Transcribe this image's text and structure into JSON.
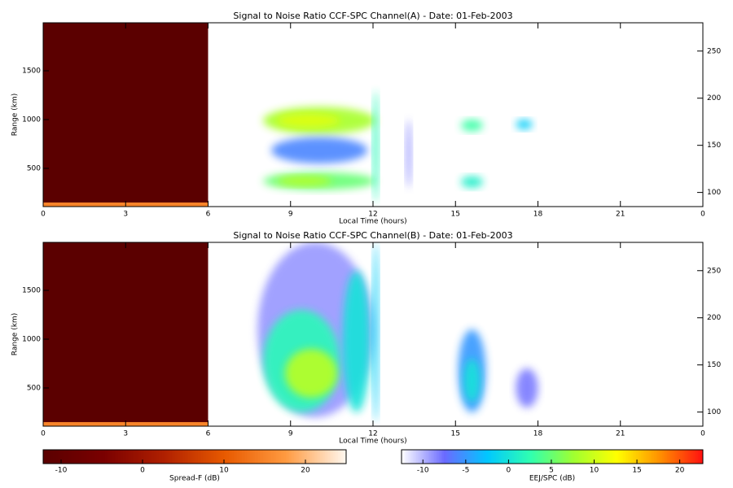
{
  "panels": [
    {
      "title": "Signal to Noise Ratio CCF-SPC Channel(A) - Date: 01-Feb-2003",
      "xlabel": "Local Time (hours)",
      "ylabel": "Range (km)",
      "xlim": [
        0,
        24
      ],
      "xticks": [
        0,
        3,
        6,
        9,
        12,
        15,
        18,
        21,
        {
          "value": 24,
          "label": "0"
        }
      ],
      "ylim": [
        108,
        1992
      ],
      "yticks": [
        500,
        1000,
        1500
      ],
      "y2lim": [
        85,
        280
      ],
      "y2ticks": [
        100,
        150,
        200,
        250
      ],
      "patches": [
        {
          "x": [
            0,
            6
          ],
          "y": [
            108,
            1992
          ],
          "value": -12,
          "colorbar": 0
        },
        {
          "x": [
            0,
            6
          ],
          "y": [
            108,
            150
          ],
          "value": 15,
          "colorbar": 0
        },
        {
          "x": [
            8,
            12.1
          ],
          "y": [
            850,
            1130
          ],
          "value": 8,
          "colorbar": 1
        },
        {
          "x": [
            8.5,
            10.8
          ],
          "y": [
            920,
            1060
          ],
          "value": 11,
          "colorbar": 1
        },
        {
          "x": [
            8,
            12.1
          ],
          "y": [
            280,
            460
          ],
          "value": 5,
          "colorbar": 1
        },
        {
          "x": [
            8.5,
            10.5
          ],
          "y": [
            320,
            420
          ],
          "value": 9,
          "colorbar": 1
        },
        {
          "x": [
            8.3,
            11.8
          ],
          "y": [
            550,
            820
          ],
          "value": -6,
          "colorbar": 1
        },
        {
          "x": [
            12,
            12.2
          ],
          "y": [
            150,
            1300
          ],
          "value": 2,
          "colorbar": 1
        },
        {
          "x": [
            15.2,
            16
          ],
          "y": [
            880,
            1000
          ],
          "value": 3,
          "colorbar": 1
        },
        {
          "x": [
            15.2,
            16
          ],
          "y": [
            300,
            420
          ],
          "value": 1,
          "colorbar": 1
        },
        {
          "x": [
            17.2,
            17.8
          ],
          "y": [
            900,
            1000
          ],
          "value": -2,
          "colorbar": 1
        },
        {
          "x": [
            13.2,
            13.4
          ],
          "y": [
            300,
            1000
          ],
          "value": -9,
          "colorbar": 1
        }
      ]
    },
    {
      "title": "Signal to Noise Ratio CCF-SPC Channel(B) - Date: 01-Feb-2003",
      "xlabel": "Local Time (hours)",
      "ylabel": "Range (km)",
      "xlim": [
        0,
        24
      ],
      "xticks": [
        0,
        3,
        6,
        9,
        12,
        15,
        18,
        21,
        {
          "value": 24,
          "label": "0"
        }
      ],
      "ylim": [
        108,
        1992
      ],
      "yticks": [
        500,
        1000,
        1500
      ],
      "y2lim": [
        85,
        280
      ],
      "y2ticks": [
        100,
        150,
        200,
        250
      ],
      "patches": [
        {
          "x": [
            0,
            6
          ],
          "y": [
            108,
            1992
          ],
          "value": -12,
          "colorbar": 0
        },
        {
          "x": [
            0,
            6
          ],
          "y": [
            108,
            150
          ],
          "value": 15,
          "colorbar": 0
        },
        {
          "x": [
            7.8,
            12
          ],
          "y": [
            200,
            1992
          ],
          "value": -9,
          "colorbar": 1
        },
        {
          "x": [
            8,
            10.8
          ],
          "y": [
            250,
            1300
          ],
          "value": 2,
          "colorbar": 1
        },
        {
          "x": [
            8.8,
            10.7
          ],
          "y": [
            400,
            900
          ],
          "value": 9,
          "colorbar": 1
        },
        {
          "x": [
            10.9,
            11.9
          ],
          "y": [
            250,
            1700
          ],
          "value": 0,
          "colorbar": 1
        },
        {
          "x": [
            15.1,
            16.1
          ],
          "y": [
            250,
            1100
          ],
          "value": -5,
          "colorbar": 1
        },
        {
          "x": [
            15.3,
            15.9
          ],
          "y": [
            350,
            800
          ],
          "value": 0,
          "colorbar": 1
        },
        {
          "x": [
            17.2,
            18
          ],
          "y": [
            300,
            700
          ],
          "value": -8,
          "colorbar": 1
        },
        {
          "x": [
            12,
            12.2
          ],
          "y": [
            150,
            1992
          ],
          "value": -2,
          "colorbar": 1
        }
      ]
    }
  ],
  "colorbars": [
    {
      "label": "Spread-F (dB)",
      "lim": [
        -12.2,
        25
      ],
      "ticks": [
        -10,
        0,
        10,
        20
      ],
      "colors": [
        "#5a0000",
        "#7a0000",
        "#b02000",
        "#e85a00",
        "#ff9a40",
        "#fff8f0"
      ]
    },
    {
      "label": "EEJ/SPC (dB)",
      "lim": [
        -12.5,
        22.7
      ],
      "ticks": [
        -10,
        -5,
        0,
        5,
        10,
        15,
        20
      ],
      "colors": [
        "#ffffff",
        "#6a6aff",
        "#00c8ff",
        "#30ffb0",
        "#a0ff30",
        "#ffff00",
        "#ff9000",
        "#ff1010"
      ]
    }
  ]
}
